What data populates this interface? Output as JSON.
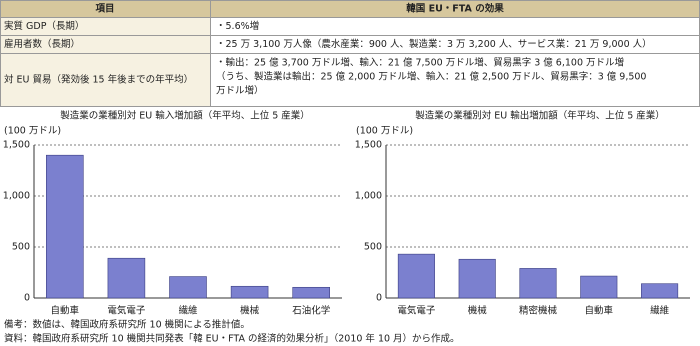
{
  "table": {
    "header": [
      "項目",
      "韓国 EU・FTA の効果"
    ],
    "rows": [
      [
        "実質 GDP（長期）",
        [
          "・5.6%増"
        ]
      ],
      [
        "雇用者数（長期）",
        [
          "・25 万 3,100 万人像（農水産業：900 人、製造業：3 万 3,200 人、サービス業：21 万 9,000 人）"
        ]
      ],
      [
        "対 EU 貿易（発効後 15 年後までの年平均）",
        [
          "・輸出：25 億 3,700 万ドル増、輸入：21 億 7,500 万ドル増、貿易黒字 3 億 6,100 万ドル増",
          "（うち、製造業は輸出：25 億 2,000 万ドル増、輸入：21 億 2,500 万ドル、貿易黒字：3 億 9,500",
          "万ドル増）"
        ]
      ]
    ]
  },
  "chart_data": [
    {
      "type": "bar",
      "title": "製造業の業種別対 EU 輸入増加額（年平均、上位 5 産業）",
      "y_label": "(100 万ドル)",
      "categories": [
        "自動車",
        "電気電子",
        "繊維",
        "機械",
        "石油化学"
      ],
      "values": [
        1400,
        390,
        210,
        115,
        105
      ],
      "color": "#7b80cf",
      "ylim": [
        0,
        1500
      ],
      "yticks": [
        0,
        500,
        {
          "value": 1000,
          "label": "1,000"
        },
        {
          "value": 1500,
          "label": "1,500"
        }
      ],
      "grid": true
    },
    {
      "type": "bar",
      "title": "製造業の業種別対 EU 輸出増加額（年平均、上位 5 産業）",
      "y_label": "(100 万ドル)",
      "categories": [
        "電気電子",
        "機械",
        "精密機械",
        "自動車",
        "繊維"
      ],
      "values": [
        430,
        380,
        290,
        215,
        140
      ],
      "color": "#7b80cf",
      "ylim": [
        0,
        1500
      ],
      "yticks": [
        0,
        500,
        {
          "value": 1000,
          "label": "1,000"
        },
        {
          "value": 1500,
          "label": "1,500"
        }
      ],
      "grid": true
    }
  ],
  "notes": [
    "備考：数値は、韓国政府系研究所 10 機関による推計値。",
    "資料：韓国政府系研究所 10 機関共同発表「韓 EU・FTA の経済的効果分析」（2010 年 10 月）から作成。"
  ]
}
